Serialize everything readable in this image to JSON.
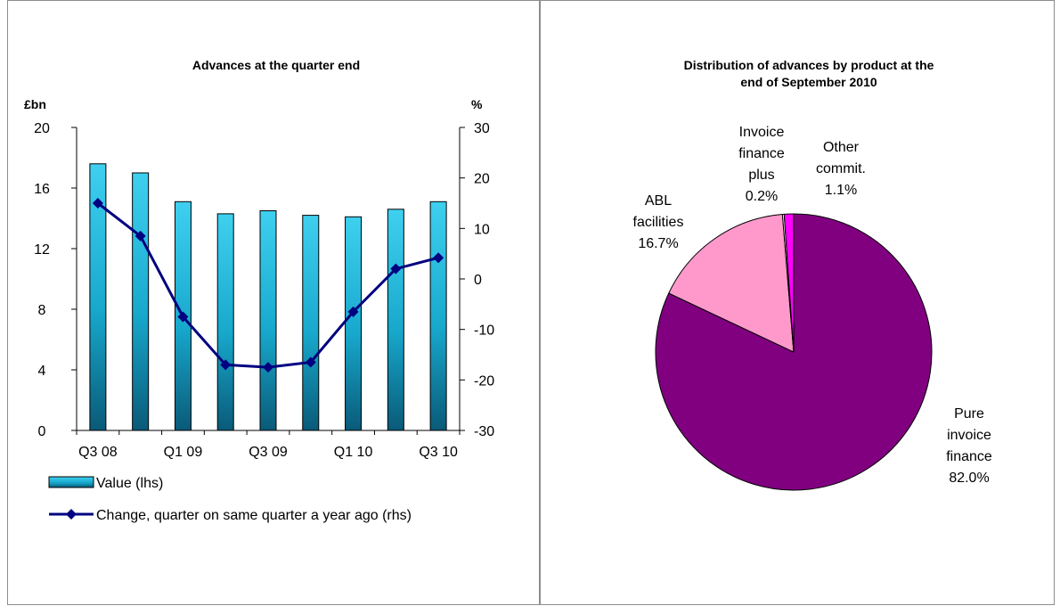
{
  "chart_data": [
    {
      "type": "bar+line",
      "title": "Advances at the quarter end",
      "y_left_label": "£bn",
      "y_right_label": "%",
      "y_left_ticks": [
        "0",
        "4",
        "8",
        "12",
        "16",
        "20"
      ],
      "y_left_lim": [
        0,
        20
      ],
      "y_right_ticks": [
        "-30",
        "-20",
        "-10",
        "0",
        "10",
        "20",
        "30"
      ],
      "y_right_lim": [
        -30,
        30
      ],
      "x_tick_labels": [
        "Q3 08",
        "Q1 09",
        "Q3 09",
        "Q1 10",
        "Q3 10"
      ],
      "categories": [
        "Q3 08",
        "Q4 08",
        "Q1 09",
        "Q2 09",
        "Q3 09",
        "Q4 09",
        "Q1 10",
        "Q2 10",
        "Q3 10"
      ],
      "series": [
        {
          "name": "Value (lhs)",
          "kind": "bar",
          "axis": "left",
          "values": [
            17.6,
            17.0,
            15.1,
            14.3,
            14.5,
            14.2,
            14.1,
            14.6,
            15.1
          ]
        },
        {
          "name": "Change, quarter on same quarter a year ago (rhs)",
          "kind": "line",
          "axis": "right",
          "values": [
            15.0,
            8.5,
            -7.5,
            -17.0,
            -17.5,
            -16.5,
            -6.5,
            2.0,
            4.2
          ]
        }
      ],
      "colors": {
        "bar": "#17b7dc",
        "line": "#000080"
      },
      "legend_position": "bottom"
    },
    {
      "type": "pie",
      "title": [
        "Distribution of advances by product at the",
        "end of September 2010"
      ],
      "slices": [
        {
          "label": [
            "Pure",
            "invoice",
            "finance"
          ],
          "value_label": "82.0%",
          "value": 82.0,
          "color": "#800080"
        },
        {
          "label": [
            "ABL",
            "facilities"
          ],
          "value_label": "16.7%",
          "value": 16.7,
          "color": "#ff99cc"
        },
        {
          "label": [
            "Invoice",
            "finance",
            "plus"
          ],
          "value_label": "0.2%",
          "value": 0.2,
          "color": "#ffffff"
        },
        {
          "label": [
            "Other",
            "commit."
          ],
          "value_label": "1.1%",
          "value": 1.1,
          "color": "#ff00ff"
        }
      ]
    }
  ]
}
